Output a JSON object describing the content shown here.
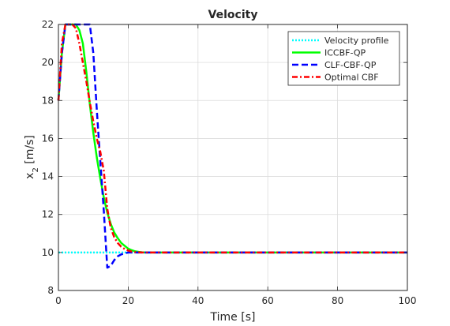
{
  "chart_data": {
    "type": "line",
    "title": "Velocity",
    "xlabel": "Time [s]",
    "ylabel_main": "x",
    "ylabel_sub": "2",
    "ylabel_unit": " [m/s]",
    "xlim": [
      0,
      100
    ],
    "ylim": [
      8,
      22
    ],
    "xticks": [
      0,
      20,
      40,
      60,
      80,
      100
    ],
    "yticks": [
      8,
      10,
      12,
      14,
      16,
      18,
      20,
      22
    ],
    "grid": true,
    "legend_position": "top-right",
    "series": [
      {
        "name": "Velocity profile",
        "color": "#00ffff",
        "style": "dotted",
        "x": [
          0,
          100
        ],
        "y": [
          10,
          10
        ]
      },
      {
        "name": "ICCBF-QP",
        "color": "#00ff00",
        "style": "solid",
        "x": [
          0,
          1,
          2,
          3,
          4,
          5,
          6,
          7,
          8,
          9,
          10,
          11,
          12,
          13,
          14,
          15,
          16,
          17,
          18,
          19,
          20,
          21,
          22,
          23,
          24,
          25,
          30,
          40,
          60,
          80,
          100
        ],
        "y": [
          18.0,
          20.5,
          22.0,
          22.0,
          22.0,
          22.0,
          21.7,
          21.0,
          19.5,
          17.8,
          16.3,
          15.0,
          13.9,
          12.9,
          12.1,
          11.5,
          11.05,
          10.75,
          10.5,
          10.35,
          10.2,
          10.12,
          10.06,
          10.03,
          10.01,
          10.0,
          10.0,
          10.0,
          10.0,
          10.0,
          10.0
        ]
      },
      {
        "name": "CLF-CBF-QP",
        "color": "#0000ff",
        "style": "dashed",
        "x": [
          0,
          1,
          2,
          3,
          4,
          5,
          6,
          7,
          8,
          9,
          10,
          11,
          12,
          13,
          14,
          15,
          16,
          17,
          18,
          19,
          20,
          22,
          25,
          30,
          40,
          60,
          80,
          100
        ],
        "y": [
          18.0,
          20.5,
          22.0,
          22.0,
          22.0,
          22.0,
          22.0,
          22.0,
          22.0,
          22.0,
          20.5,
          17.5,
          14.8,
          12.2,
          9.2,
          9.3,
          9.6,
          9.8,
          9.9,
          9.95,
          10.0,
          10.0,
          10.0,
          10.0,
          10.0,
          10.0,
          10.0,
          10.0
        ]
      },
      {
        "name": "Optimal CBF",
        "color": "#ff0000",
        "style": "dashdot",
        "x": [
          0,
          1,
          2,
          3,
          4,
          5,
          6,
          7,
          8,
          9,
          10,
          11,
          12,
          13,
          14,
          15,
          16,
          17,
          18,
          19,
          20,
          21,
          22,
          23,
          24,
          25,
          30,
          40,
          60,
          80,
          100
        ],
        "y": [
          18.0,
          21.0,
          22.0,
          22.0,
          22.0,
          21.8,
          21.0,
          20.0,
          19.0,
          17.9,
          16.9,
          16.0,
          15.3,
          14.3,
          12.3,
          11.3,
          10.8,
          10.5,
          10.3,
          10.18,
          10.1,
          10.05,
          10.02,
          10.01,
          10.0,
          10.0,
          10.0,
          10.0,
          10.0,
          10.0,
          10.0
        ]
      }
    ]
  }
}
